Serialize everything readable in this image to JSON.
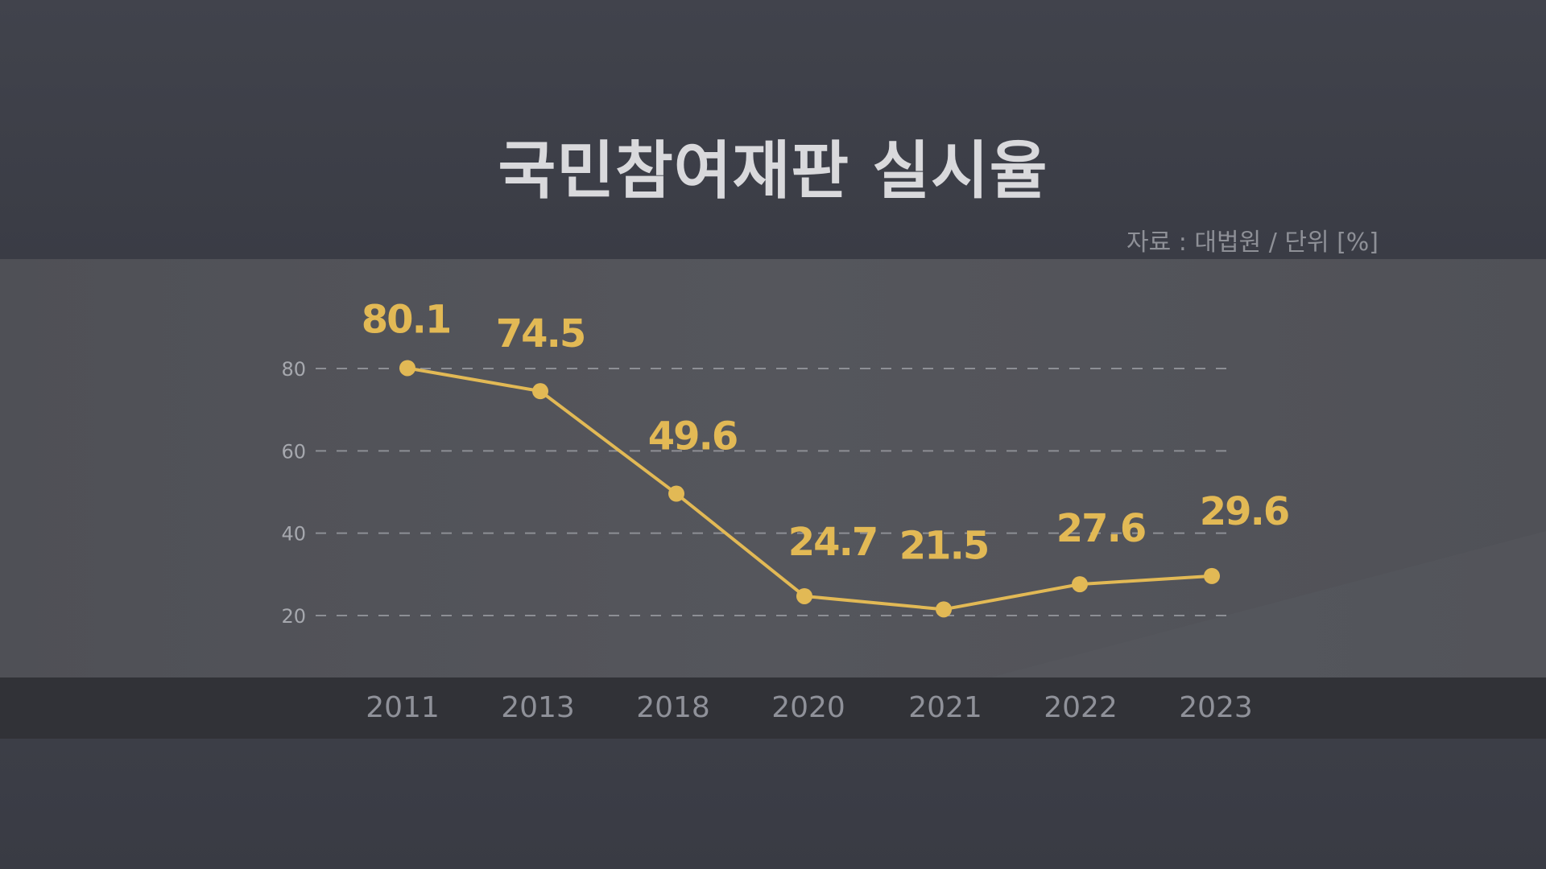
{
  "title": "국민참여재판 실시율",
  "source_note": "자료 : 대법원 / 단위 [%]",
  "colors": {
    "line": "#e2b955",
    "label": "#e2b955",
    "grid": "#8d8f95",
    "tick": "#a6a8ae",
    "plot_bg": "#55565c",
    "band": "#313237"
  },
  "chart_data": {
    "type": "line",
    "title": "국민참여재판 실시율",
    "xlabel": "",
    "ylabel": "",
    "categories": [
      "2011",
      "2013",
      "2018",
      "2020",
      "2021",
      "2022",
      "2023"
    ],
    "series": [
      {
        "values": [
          80.1,
          74.5,
          49.6,
          24.7,
          21.5,
          27.6,
          29.6
        ]
      }
    ],
    "yticks": [
      "20",
      "40",
      "60",
      "80"
    ],
    "ylim": [
      20,
      80
    ],
    "grid": true,
    "data_labels": true,
    "legend": false
  }
}
